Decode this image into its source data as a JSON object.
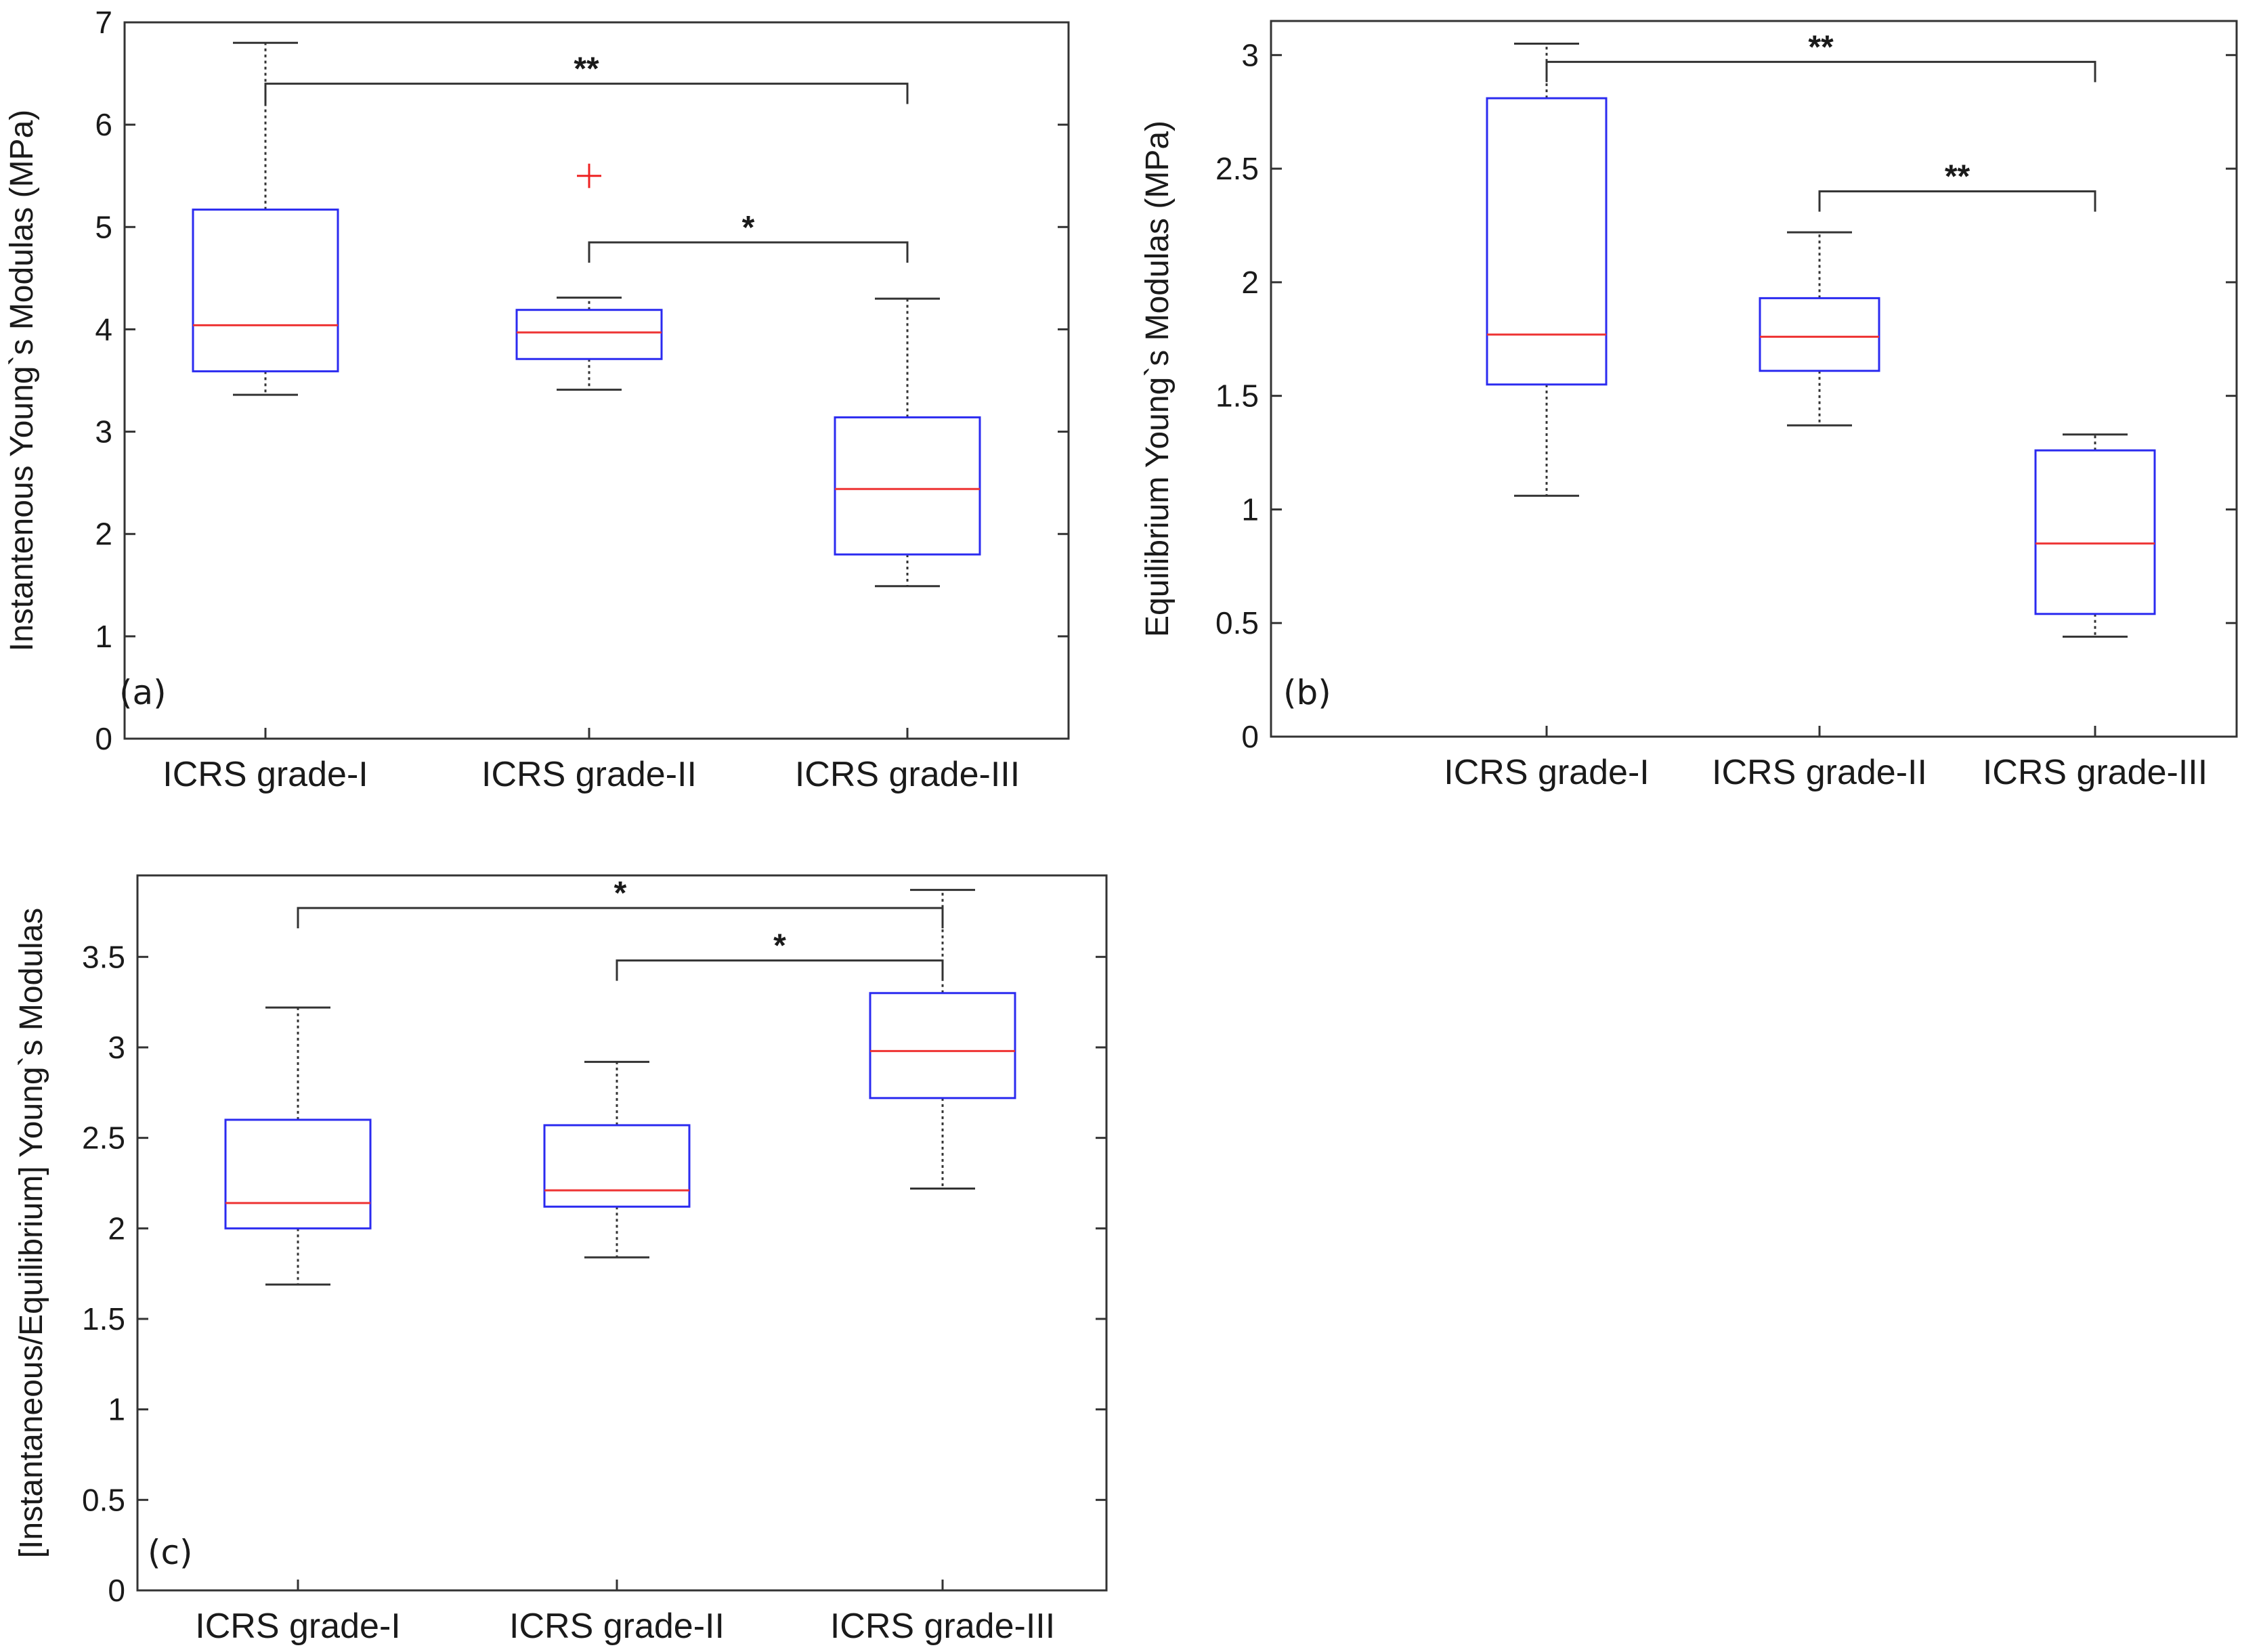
{
  "chart_data": [
    {
      "type": "box",
      "panel_label": "(a)",
      "ylabel": "Instantenous Young`s Modulas (MPa)",
      "ylim": [
        0,
        7
      ],
      "yticks": [
        0,
        1,
        2,
        3,
        4,
        5,
        6,
        7
      ],
      "ytick_labels": [
        "0",
        "1",
        "2",
        "3",
        "4",
        "5",
        "6",
        "7"
      ],
      "categories": [
        "ICRS grade-I",
        "ICRS grade-II",
        "ICRS grade-III"
      ],
      "boxes": [
        {
          "whisker_low": 3.36,
          "q1": 3.59,
          "median": 4.04,
          "q3": 5.17,
          "whisker_high": 6.8,
          "outliers": []
        },
        {
          "whisker_low": 3.41,
          "q1": 3.71,
          "median": 3.97,
          "q3": 4.19,
          "whisker_high": 4.31,
          "outliers": [
            5.5
          ]
        },
        {
          "whisker_low": 1.49,
          "q1": 1.8,
          "median": 2.44,
          "q3": 3.14,
          "whisker_high": 4.3,
          "outliers": []
        }
      ],
      "significance": [
        {
          "from": 0,
          "to": 2,
          "level": 6.4,
          "label": "**"
        },
        {
          "from": 1,
          "to": 2,
          "level": 4.85,
          "label": "*"
        }
      ],
      "colors": {
        "box": "#2b2bf0",
        "median": "#ee3333",
        "whisker": "#333333",
        "outlier": "#ee2222"
      }
    },
    {
      "type": "box",
      "panel_label": "(b)",
      "ylabel": "Equilibrium Young`s Modulas (MPa)",
      "ylim": [
        0,
        3.15
      ],
      "yticks": [
        0,
        0.5,
        1,
        1.5,
        2,
        2.5,
        3
      ],
      "ytick_labels": [
        "0",
        "0.5",
        "1",
        "1.5",
        "2",
        "2.5",
        "3"
      ],
      "categories": [
        "ICRS grade-I",
        "ICRS grade-II",
        "ICRS grade-III"
      ],
      "boxes": [
        {
          "whisker_low": 1.06,
          "q1": 1.55,
          "median": 1.77,
          "q3": 2.81,
          "whisker_high": 3.05,
          "outliers": []
        },
        {
          "whisker_low": 1.37,
          "q1": 1.61,
          "median": 1.76,
          "q3": 1.93,
          "whisker_high": 2.22,
          "outliers": []
        },
        {
          "whisker_low": 0.44,
          "q1": 0.54,
          "median": 0.85,
          "q3": 1.26,
          "whisker_high": 1.33,
          "outliers": []
        }
      ],
      "significance": [
        {
          "from": 0,
          "to": 2,
          "level": 2.97,
          "label": "**"
        },
        {
          "from": 1,
          "to": 2,
          "level": 2.4,
          "label": "**"
        }
      ],
      "colors": {
        "box": "#2b2bf0",
        "median": "#ee3333",
        "whisker": "#333333",
        "outlier": "#ee2222"
      }
    },
    {
      "type": "box",
      "panel_label": "(c)",
      "ylabel": "[Instantaneous/Equilibrium] Young`s Modulas",
      "ylim": [
        0,
        3.95
      ],
      "yticks": [
        0,
        0.5,
        1,
        1.5,
        2,
        2.5,
        3,
        3.5
      ],
      "ytick_labels": [
        "0",
        "0.5",
        "1",
        "1.5",
        "2",
        "2.5",
        "3",
        "3.5"
      ],
      "categories": [
        "ICRS grade-I",
        "ICRS grade-II",
        "ICRS grade-III"
      ],
      "boxes": [
        {
          "whisker_low": 1.69,
          "q1": 2.0,
          "median": 2.14,
          "q3": 2.6,
          "whisker_high": 3.22,
          "outliers": []
        },
        {
          "whisker_low": 1.84,
          "q1": 2.12,
          "median": 2.21,
          "q3": 2.57,
          "whisker_high": 2.92,
          "outliers": []
        },
        {
          "whisker_low": 2.22,
          "q1": 2.72,
          "median": 2.98,
          "q3": 3.3,
          "whisker_high": 3.87,
          "outliers": []
        }
      ],
      "significance": [
        {
          "from": 0,
          "to": 2,
          "level": 3.77,
          "label": "*"
        },
        {
          "from": 1,
          "to": 2,
          "level": 3.48,
          "label": "*"
        }
      ],
      "colors": {
        "box": "#2b2bf0",
        "median": "#ee3333",
        "whisker": "#333333",
        "outlier": "#ee2222"
      }
    }
  ]
}
